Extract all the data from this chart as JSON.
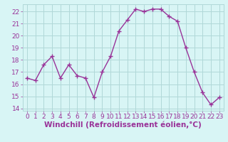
{
  "x": [
    0,
    1,
    2,
    3,
    4,
    5,
    6,
    7,
    8,
    9,
    10,
    11,
    12,
    13,
    14,
    15,
    16,
    17,
    18,
    19,
    20,
    21,
    22,
    23
  ],
  "y": [
    16.5,
    16.3,
    17.6,
    18.3,
    16.5,
    17.6,
    16.7,
    16.5,
    14.9,
    17.0,
    18.3,
    20.4,
    21.3,
    22.2,
    22.0,
    22.2,
    22.2,
    21.6,
    21.2,
    19.0,
    17.0,
    15.3,
    14.3,
    14.9
  ],
  "line_color": "#993399",
  "marker": "+",
  "marker_size": 4,
  "bg_color": "#d8f5f5",
  "grid_color": "#b0d8d8",
  "xlabel": "Windchill (Refroidissement éolien,°C)",
  "ylim": [
    13.8,
    22.6
  ],
  "xlim": [
    -0.5,
    23.5
  ],
  "yticks": [
    14,
    15,
    16,
    17,
    18,
    19,
    20,
    21,
    22
  ],
  "xticks": [
    0,
    1,
    2,
    3,
    4,
    5,
    6,
    7,
    8,
    9,
    10,
    11,
    12,
    13,
    14,
    15,
    16,
    17,
    18,
    19,
    20,
    21,
    22,
    23
  ],
  "tick_label_fontsize": 6.5,
  "xlabel_fontsize": 7.5,
  "line_width": 1.0
}
